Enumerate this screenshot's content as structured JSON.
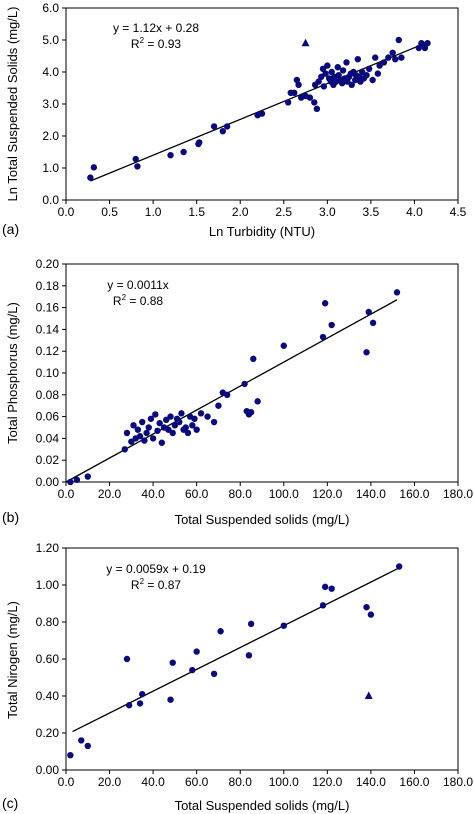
{
  "colors": {
    "marker": "#0a0a7a",
    "axis": "#000000",
    "fit": "#000000",
    "background": "#ffffff"
  },
  "chart_data": [
    {
      "type": "scatter",
      "panel_label": "(a)",
      "xlabel": "Ln Turbidity (NTU)",
      "ylabel": "Ln Total Suspended Solids (mg/L)",
      "xlim": [
        0,
        4.5
      ],
      "ylim": [
        0,
        6
      ],
      "xticks": [
        "0.0",
        "0.5",
        "1.0",
        "1.5",
        "2.0",
        "2.5",
        "3.0",
        "3.5",
        "4.0",
        "4.5"
      ],
      "yticks": [
        "0.0",
        "1.0",
        "2.0",
        "3.0",
        "4.0",
        "5.0",
        "6.0"
      ],
      "grid": false,
      "equation": "y = 1.12x + 0.28",
      "r2_prefix": "R",
      "r2_exp": "2",
      "r2_value": " = 0.93",
      "fit": {
        "slope": 1.12,
        "intercept": 0.28,
        "x_range": [
          0.28,
          4.15
        ]
      },
      "series": [
        {
          "marker": "circle",
          "points": [
            [
              0.28,
              0.7
            ],
            [
              0.32,
              1.02
            ],
            [
              0.8,
              1.28
            ],
            [
              0.82,
              1.05
            ],
            [
              1.2,
              1.4
            ],
            [
              1.35,
              1.5
            ],
            [
              1.52,
              1.75
            ],
            [
              1.53,
              1.8
            ],
            [
              1.7,
              2.3
            ],
            [
              1.8,
              2.15
            ],
            [
              1.85,
              2.3
            ],
            [
              2.2,
              2.65
            ],
            [
              2.25,
              2.7
            ],
            [
              2.55,
              3.05
            ],
            [
              2.58,
              3.35
            ],
            [
              2.62,
              3.35
            ],
            [
              2.65,
              3.75
            ],
            [
              2.67,
              3.6
            ],
            [
              2.7,
              3.2
            ],
            [
              2.75,
              3.25
            ],
            [
              2.8,
              3.2
            ],
            [
              2.85,
              3.05
            ],
            [
              2.86,
              3.6
            ],
            [
              2.88,
              2.85
            ],
            [
              2.9,
              3.7
            ],
            [
              2.93,
              3.85
            ],
            [
              2.95,
              4.1
            ],
            [
              2.96,
              3.55
            ],
            [
              2.98,
              3.95
            ],
            [
              3.0,
              4.2
            ],
            [
              3.02,
              3.8
            ],
            [
              3.04,
              3.7
            ],
            [
              3.05,
              4.0
            ],
            [
              3.07,
              3.6
            ],
            [
              3.08,
              3.85
            ],
            [
              3.1,
              3.7
            ],
            [
              3.12,
              4.15
            ],
            [
              3.13,
              3.9
            ],
            [
              3.15,
              3.75
            ],
            [
              3.17,
              3.65
            ],
            [
              3.18,
              4.05
            ],
            [
              3.2,
              3.8
            ],
            [
              3.22,
              4.3
            ],
            [
              3.23,
              3.7
            ],
            [
              3.25,
              3.85
            ],
            [
              3.27,
              3.95
            ],
            [
              3.28,
              3.6
            ],
            [
              3.3,
              4.0
            ],
            [
              3.32,
              3.75
            ],
            [
              3.33,
              3.9
            ],
            [
              3.35,
              4.4
            ],
            [
              3.37,
              3.85
            ],
            [
              3.38,
              3.7
            ],
            [
              3.4,
              4.0
            ],
            [
              3.42,
              3.8
            ],
            [
              3.45,
              3.9
            ],
            [
              3.48,
              4.1
            ],
            [
              3.52,
              3.75
            ],
            [
              3.55,
              4.45
            ],
            [
              3.58,
              3.95
            ],
            [
              3.6,
              4.2
            ],
            [
              3.65,
              4.3
            ],
            [
              3.7,
              4.45
            ],
            [
              3.75,
              4.6
            ],
            [
              3.78,
              4.4
            ],
            [
              3.82,
              5.0
            ],
            [
              3.85,
              4.45
            ],
            [
              4.05,
              4.75
            ],
            [
              4.08,
              4.9
            ],
            [
              4.1,
              4.85
            ],
            [
              4.15,
              4.9
            ],
            [
              4.12,
              4.75
            ]
          ]
        },
        {
          "marker": "triangle",
          "points": [
            [
              2.75,
              4.9
            ]
          ]
        }
      ]
    },
    {
      "type": "scatter",
      "panel_label": "(b)",
      "xlabel": "Total Suspended solids (mg/L)",
      "ylabel": "Total Phosphorus (mg/L)",
      "xlim": [
        0,
        180
      ],
      "ylim": [
        0,
        0.2
      ],
      "xticks": [
        "0.0",
        "20.0",
        "40.0",
        "60.0",
        "80.0",
        "100.0",
        "120.0",
        "140.0",
        "160.0",
        "180.0"
      ],
      "yticks": [
        "0.00",
        "0.02",
        "0.04",
        "0.06",
        "0.08",
        "0.10",
        "0.12",
        "0.14",
        "0.16",
        "0.18",
        "0.20"
      ],
      "grid": false,
      "equation": "y = 0.0011x",
      "r2_prefix": "R",
      "r2_exp": "2",
      "r2_value": " = 0.88",
      "fit": {
        "slope": 0.0011,
        "intercept": 0,
        "x_range": [
          0,
          152
        ]
      },
      "series": [
        {
          "marker": "circle",
          "points": [
            [
              2,
              0.0
            ],
            [
              5,
              0.002
            ],
            [
              10,
              0.005
            ],
            [
              27,
              0.03
            ],
            [
              28,
              0.045
            ],
            [
              30,
              0.037
            ],
            [
              31,
              0.052
            ],
            [
              32,
              0.04
            ],
            [
              33,
              0.048
            ],
            [
              34,
              0.042
            ],
            [
              35,
              0.055
            ],
            [
              36,
              0.038
            ],
            [
              37,
              0.045
            ],
            [
              38,
              0.05
            ],
            [
              39,
              0.058
            ],
            [
              40,
              0.04
            ],
            [
              41,
              0.062
            ],
            [
              42,
              0.047
            ],
            [
              43,
              0.054
            ],
            [
              44,
              0.036
            ],
            [
              45,
              0.05
            ],
            [
              46,
              0.057
            ],
            [
              47,
              0.048
            ],
            [
              48,
              0.06
            ],
            [
              49,
              0.045
            ],
            [
              50,
              0.052
            ],
            [
              51,
              0.058
            ],
            [
              52,
              0.055
            ],
            [
              53,
              0.063
            ],
            [
              54,
              0.048
            ],
            [
              55,
              0.05
            ],
            [
              56,
              0.045
            ],
            [
              57,
              0.06
            ],
            [
              58,
              0.052
            ],
            [
              59,
              0.058
            ],
            [
              60,
              0.048
            ],
            [
              62,
              0.063
            ],
            [
              65,
              0.06
            ],
            [
              68,
              0.055
            ],
            [
              70,
              0.07
            ],
            [
              72,
              0.082
            ],
            [
              74,
              0.08
            ],
            [
              82,
              0.09
            ],
            [
              83,
              0.065
            ],
            [
              84,
              0.062
            ],
            [
              85,
              0.064
            ],
            [
              86,
              0.113
            ],
            [
              88,
              0.074
            ],
            [
              100,
              0.125
            ],
            [
              118,
              0.133
            ],
            [
              119,
              0.164
            ],
            [
              122,
              0.144
            ],
            [
              138,
              0.119
            ],
            [
              139,
              0.156
            ],
            [
              141,
              0.146
            ],
            [
              152,
              0.174
            ]
          ]
        }
      ]
    },
    {
      "type": "scatter",
      "panel_label": "(c)",
      "xlabel": "Total Suspended solids (mg/L)",
      "ylabel": "Total Nirogen (mg/L)",
      "xlim": [
        0,
        180
      ],
      "ylim": [
        0,
        1.2
      ],
      "xticks": [
        "0.0",
        "20.0",
        "40.0",
        "60.0",
        "80.0",
        "100.0",
        "120.0",
        "140.0",
        "160.0",
        "180.0"
      ],
      "yticks": [
        "0.00",
        "0.20",
        "0.40",
        "0.60",
        "0.80",
        "1.00",
        "1.20"
      ],
      "grid": false,
      "equation": "y = 0.0059x + 0.19",
      "r2_prefix": "R",
      "r2_exp": "2",
      "r2_value": " = 0.87",
      "fit": {
        "slope": 0.0059,
        "intercept": 0.19,
        "x_range": [
          3,
          153
        ]
      },
      "series": [
        {
          "marker": "circle",
          "points": [
            [
              2,
              0.08
            ],
            [
              7,
              0.16
            ],
            [
              10,
              0.13
            ],
            [
              28,
              0.6
            ],
            [
              29,
              0.35
            ],
            [
              34,
              0.36
            ],
            [
              35,
              0.41
            ],
            [
              48,
              0.38
            ],
            [
              49,
              0.58
            ],
            [
              58,
              0.54
            ],
            [
              60,
              0.64
            ],
            [
              68,
              0.52
            ],
            [
              71,
              0.75
            ],
            [
              84,
              0.62
            ],
            [
              85,
              0.79
            ],
            [
              100,
              0.78
            ],
            [
              118,
              0.89
            ],
            [
              119,
              0.99
            ],
            [
              122,
              0.98
            ],
            [
              138,
              0.88
            ],
            [
              140,
              0.84
            ],
            [
              153,
              1.1
            ]
          ]
        },
        {
          "marker": "triangle",
          "points": [
            [
              139,
              0.4
            ]
          ]
        }
      ]
    }
  ]
}
